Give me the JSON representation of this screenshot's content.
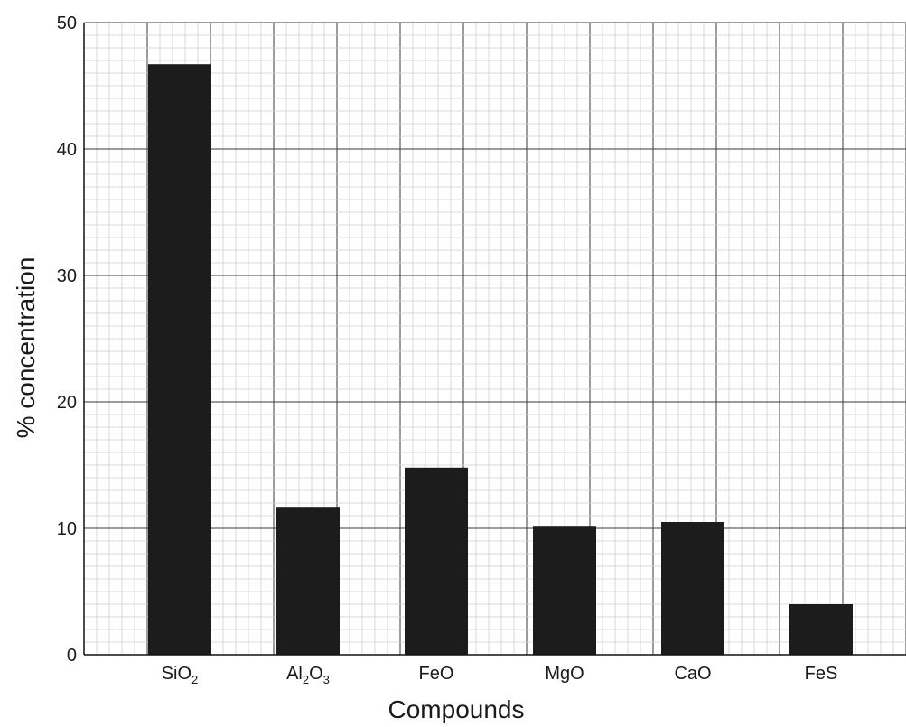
{
  "chart_data": {
    "type": "bar",
    "categories": [
      {
        "base": "SiO",
        "parts": [
          {
            "t": "SiO",
            "sub": false
          },
          {
            "t": "2",
            "sub": true
          }
        ]
      },
      {
        "base": "Al2O3",
        "parts": [
          {
            "t": "Al",
            "sub": false
          },
          {
            "t": "2",
            "sub": true
          },
          {
            "t": "O",
            "sub": false
          },
          {
            "t": "3",
            "sub": true
          }
        ]
      },
      {
        "base": "FeO",
        "parts": [
          {
            "t": "FeO",
            "sub": false
          }
        ]
      },
      {
        "base": "MgO",
        "parts": [
          {
            "t": "MgO",
            "sub": false
          }
        ]
      },
      {
        "base": "CaO",
        "parts": [
          {
            "t": "CaO",
            "sub": false
          }
        ]
      },
      {
        "base": "FeS",
        "parts": [
          {
            "t": "FeS",
            "sub": false
          }
        ]
      }
    ],
    "values": [
      46.7,
      11.7,
      14.8,
      10.2,
      10.5,
      4.0
    ],
    "xlabel": "Compounds",
    "ylabel": "% concentration",
    "ylim": [
      0,
      50
    ],
    "yticks": [
      0,
      10,
      20,
      30,
      40,
      50
    ],
    "grid": true,
    "bar_color": "#1c1c1c",
    "grid_major_color": "#3a3a3a",
    "grid_minor_color": "#cfcfcf"
  }
}
